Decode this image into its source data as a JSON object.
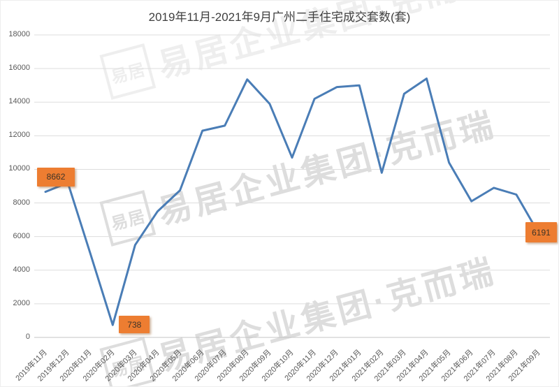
{
  "chart_data": {
    "type": "line",
    "title": "2019年11月-2021年9月广州二手住宅成交套数(套)",
    "categories": [
      "2019年11月",
      "2019年12月",
      "2020年01月",
      "2020年02月",
      "2020年03月",
      "2020年04月",
      "2020年05月",
      "2020年06月",
      "2020年07月",
      "2020年08月",
      "2020年09月",
      "2020年10月",
      "2020年11月",
      "2020年12月",
      "2021年01月",
      "2021年02月",
      "2021年03月",
      "2021年04月",
      "2021年05月",
      "2021年06月",
      "2021年07月",
      "2021年08月",
      "2021年09月"
    ],
    "values": [
      8662,
      9200,
      5000,
      738,
      5500,
      7500,
      8750,
      12300,
      12600,
      15350,
      13900,
      10700,
      14200,
      14900,
      15000,
      9800,
      14500,
      15400,
      10400,
      8100,
      8900,
      8500,
      6191
    ],
    "ylim": [
      0,
      18000
    ],
    "ytick_interval": 2000,
    "grid": true,
    "legend": false,
    "data_labels": [
      {
        "index": 0,
        "text": "8662"
      },
      {
        "index": 3,
        "text": "738"
      },
      {
        "index": 22,
        "text": "6191"
      }
    ]
  },
  "watermark": {
    "logo_text": "易居",
    "text": "易居企业集团·克而瑞"
  },
  "colors": {
    "line": "#4a7db6",
    "label_bg": "#ed7d31",
    "label_text": "#3e3428",
    "grid": "#dddddd",
    "axis_line": "#c4c4c4",
    "axis_text": "#595959",
    "title": "#3f3f3f",
    "watermark": "#c9c9c9"
  }
}
